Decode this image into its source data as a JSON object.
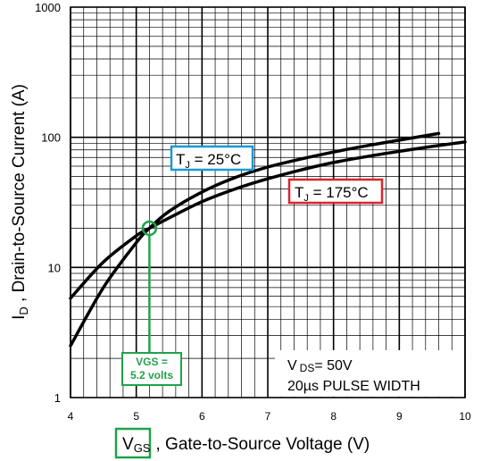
{
  "colors": {
    "curve": "#000000",
    "grid": "#000000",
    "tj25_box": "#1a9ad6",
    "tj175_box": "#d8262e",
    "vgs_marker": "#1fa24a"
  },
  "chart_data": {
    "type": "line",
    "title": "",
    "x_scale": "linear",
    "y_scale": "log",
    "xlim": [
      4,
      10
    ],
    "ylim": [
      1,
      1000
    ],
    "xticks": [
      "4",
      "5",
      "6",
      "7",
      "8",
      "9",
      "10"
    ],
    "yticks": [
      "1",
      "10",
      "100",
      "1000"
    ],
    "xlabel": {
      "main": "V",
      "sub": "GS",
      "rest": ", Gate-to-Source Voltage (V)"
    },
    "ylabel": {
      "main": "I",
      "sub": "D",
      "rest": " , Drain-to-Source Current (A)"
    },
    "grid": true,
    "series": [
      {
        "name": "T_J = 25°C",
        "label": {
          "pre": "T",
          "sub": "J",
          "rest": " = 25°C"
        },
        "x": [
          4.0,
          4.5,
          5.0,
          5.2,
          5.5,
          6.0,
          6.5,
          7.0,
          7.5,
          8.0,
          8.5,
          9.0,
          9.6
        ],
        "y": [
          2.5,
          7.0,
          15.5,
          20.0,
          27.0,
          38.0,
          49.0,
          59.0,
          68.0,
          77.0,
          86.0,
          95.0,
          107.0
        ]
      },
      {
        "name": "T_J = 175°C",
        "label": {
          "pre": "T",
          "sub": "J",
          "rest": " = 175°C"
        },
        "x": [
          4.0,
          4.5,
          5.0,
          5.2,
          5.5,
          6.0,
          6.5,
          7.0,
          7.5,
          8.0,
          8.5,
          9.0,
          9.5,
          10.0
        ],
        "y": [
          5.8,
          11.0,
          17.5,
          20.0,
          24.0,
          32.0,
          40.0,
          48.0,
          56.0,
          64.0,
          71.0,
          78.0,
          85.0,
          92.0
        ]
      }
    ],
    "annotations": {
      "conditions": {
        "line1_pre": "V",
        "line1_sub": "DS",
        "line1_rest": "= 50V",
        "line2": "20µs PULSE WIDTH"
      },
      "crossover": {
        "x": 5.2,
        "y": 20.0,
        "text_line1": "VGS =",
        "text_line2": "5.2 volts"
      }
    }
  }
}
